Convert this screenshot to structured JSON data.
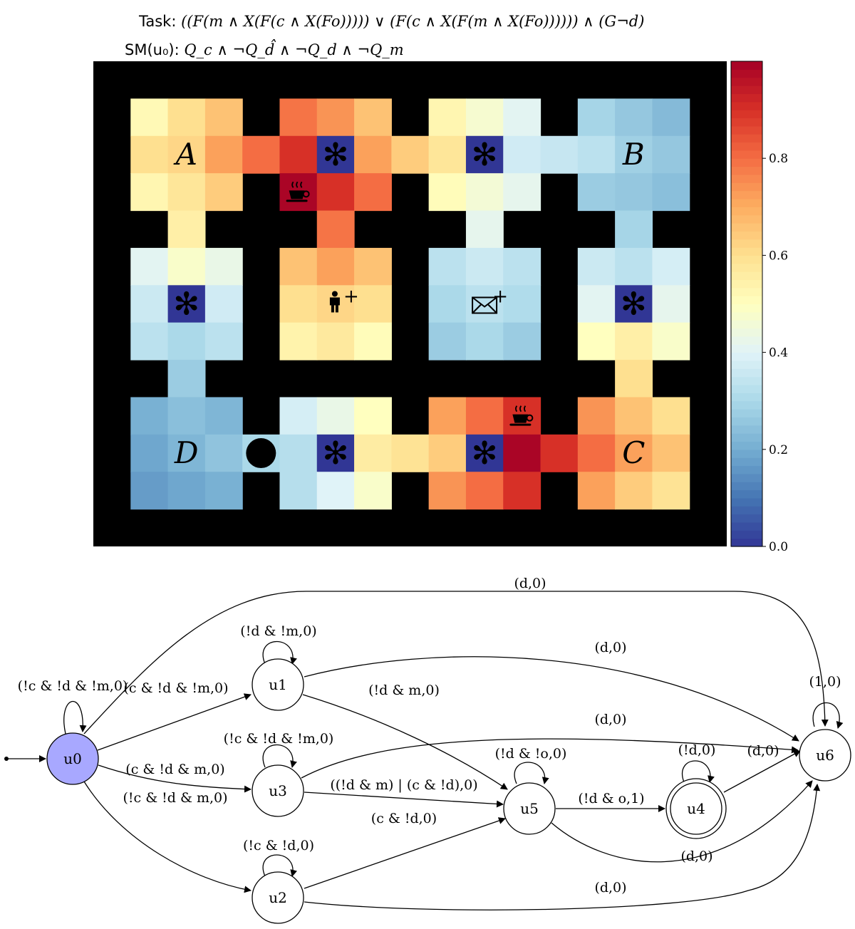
{
  "header": {
    "task_label": "Task:",
    "task_formula": "((F(m ∧ X(F(c ∧ X(Fo))))) ∨ (F(c ∧ X(F(m ∧ X(Fo)))))) ∧ (G¬d)",
    "sm_label": "SM(u₀):",
    "sm_formula": "Q_c ∧ ¬Q_d̂ ∧ ¬Q_d ∧ ¬Q_m"
  },
  "gridworld": {
    "rows": 13,
    "cols": 17,
    "wall_color": "#000000",
    "values": [
      [
        null,
        null,
        null,
        null,
        null,
        null,
        null,
        null,
        null,
        null,
        null,
        null,
        null,
        null,
        null,
        null,
        null
      ],
      [
        null,
        0.52,
        0.6,
        0.66,
        null,
        0.79,
        0.74,
        0.66,
        null,
        0.53,
        0.47,
        0.41,
        null,
        0.29,
        0.26,
        0.23,
        null
      ],
      [
        null,
        0.6,
        0.62,
        0.72,
        0.8,
        0.9,
        0.0,
        0.72,
        0.64,
        0.58,
        0.0,
        0.37,
        0.35,
        0.33,
        0.28,
        0.26,
        null
      ],
      [
        null,
        0.53,
        0.58,
        0.64,
        null,
        0.99,
        0.9,
        0.8,
        null,
        0.51,
        0.46,
        0.42,
        null,
        0.27,
        0.26,
        0.24,
        null
      ],
      [
        null,
        null,
        0.55,
        null,
        null,
        null,
        0.79,
        null,
        null,
        null,
        0.42,
        null,
        null,
        null,
        0.29,
        null,
        null
      ],
      [
        null,
        0.41,
        0.48,
        0.43,
        null,
        0.66,
        0.72,
        0.66,
        null,
        0.33,
        0.36,
        0.33,
        null,
        0.36,
        0.33,
        0.38,
        null
      ],
      [
        null,
        0.36,
        0.0,
        0.37,
        null,
        0.6,
        0.62,
        0.6,
        null,
        0.3,
        0.33,
        0.31,
        null,
        0.41,
        0.0,
        0.42,
        null
      ],
      [
        null,
        0.33,
        0.3,
        0.33,
        null,
        0.54,
        0.57,
        0.51,
        null,
        0.27,
        0.3,
        0.27,
        null,
        0.5,
        0.55,
        0.48,
        null
      ],
      [
        null,
        null,
        0.27,
        null,
        null,
        null,
        null,
        null,
        null,
        null,
        null,
        null,
        null,
        null,
        0.6,
        null,
        null
      ],
      [
        null,
        0.21,
        0.24,
        0.22,
        null,
        0.38,
        0.43,
        0.5,
        null,
        0.72,
        0.8,
        0.9,
        null,
        0.74,
        0.66,
        0.6,
        null
      ],
      [
        null,
        0.19,
        0.22,
        0.25,
        0.3,
        0.32,
        0.0,
        0.56,
        0.59,
        0.64,
        0.0,
        0.99,
        0.9,
        0.8,
        0.72,
        0.66,
        null
      ],
      [
        null,
        0.17,
        0.19,
        0.21,
        null,
        0.32,
        0.4,
        0.48,
        null,
        0.74,
        0.8,
        0.9,
        null,
        0.72,
        0.64,
        0.59,
        null
      ],
      [
        null,
        null,
        null,
        null,
        null,
        null,
        null,
        null,
        null,
        null,
        null,
        null,
        null,
        null,
        null,
        null,
        null
      ]
    ],
    "room_labels": [
      {
        "text": "A",
        "row": 2,
        "col": 2
      },
      {
        "text": "B",
        "row": 2,
        "col": 14
      },
      {
        "text": "C",
        "row": 10,
        "col": 14
      },
      {
        "text": "D",
        "row": 10,
        "col": 2
      }
    ],
    "markers": [
      {
        "icon": "decoration-star-icon",
        "glyph": "✻",
        "row": 2,
        "col": 6
      },
      {
        "icon": "decoration-star-icon",
        "glyph": "✻",
        "row": 2,
        "col": 10
      },
      {
        "icon": "decoration-star-icon",
        "glyph": "✻",
        "row": 6,
        "col": 2
      },
      {
        "icon": "decoration-star-icon",
        "glyph": "✻",
        "row": 6,
        "col": 14
      },
      {
        "icon": "decoration-star-icon",
        "glyph": "✻",
        "row": 10,
        "col": 6
      },
      {
        "icon": "decoration-star-icon",
        "glyph": "✻",
        "row": 10,
        "col": 10
      },
      {
        "icon": "coffee-cup-icon",
        "glyph": "☕",
        "row": 3,
        "col": 5
      },
      {
        "icon": "coffee-cup-icon",
        "glyph": "☕",
        "row": 9,
        "col": 11
      },
      {
        "icon": "person-icon",
        "glyph": "",
        "row": 6,
        "col": 6
      },
      {
        "icon": "mail-envelope-icon",
        "glyph": "✉",
        "row": 6,
        "col": 10
      },
      {
        "icon": "agent-dot-icon",
        "glyph": "",
        "row": 10,
        "col": 4
      }
    ],
    "plus_marks": [
      {
        "text": "+",
        "row": 6,
        "col": 6
      },
      {
        "text": "+",
        "row": 6,
        "col": 10
      }
    ]
  },
  "colorbar": {
    "min": 0.0,
    "max": 1.0,
    "colormap": "RdYlBu_r",
    "ticks": [
      {
        "value": 0.0,
        "label": "0.0"
      },
      {
        "value": 0.2,
        "label": "0.2"
      },
      {
        "value": 0.4,
        "label": "0.4"
      },
      {
        "value": 0.6,
        "label": "0.6"
      },
      {
        "value": 0.8,
        "label": "0.8"
      }
    ]
  },
  "automaton": {
    "initial_state": "u0",
    "accepting_states": [
      "u4"
    ],
    "current_state": "u0",
    "current_state_fill": "#a8a8ff",
    "nodes": [
      {
        "id": "u0",
        "label": "u0"
      },
      {
        "id": "u1",
        "label": "u1"
      },
      {
        "id": "u2",
        "label": "u2"
      },
      {
        "id": "u3",
        "label": "u3"
      },
      {
        "id": "u4",
        "label": "u4"
      },
      {
        "id": "u5",
        "label": "u5"
      },
      {
        "id": "u6",
        "label": "u6"
      }
    ],
    "edges": [
      {
        "from": "u0",
        "to": "u0",
        "label": "(!c & !d & !m,0)"
      },
      {
        "from": "u0",
        "to": "u1",
        "label": "(c & !d & !m,0)"
      },
      {
        "from": "u0",
        "to": "u3",
        "label": "(c & !d & m,0)"
      },
      {
        "from": "u0",
        "to": "u2",
        "label": "(!c & !d & m,0)"
      },
      {
        "from": "u0",
        "to": "u6",
        "label": "(d,0)"
      },
      {
        "from": "u1",
        "to": "u1",
        "label": "(!d & !m,0)"
      },
      {
        "from": "u1",
        "to": "u6",
        "label": "(d,0)"
      },
      {
        "from": "u1",
        "to": "u5",
        "label": "(!d & m,0)"
      },
      {
        "from": "u3",
        "to": "u3",
        "label": "(!c & !d & !m,0)"
      },
      {
        "from": "u3",
        "to": "u6",
        "label": "(d,0)"
      },
      {
        "from": "u3",
        "to": "u5",
        "label": "((!d & m) | (c & !d),0)"
      },
      {
        "from": "u2",
        "to": "u2",
        "label": "(!c & !d,0)"
      },
      {
        "from": "u2",
        "to": "u5",
        "label": "(c & !d,0)"
      },
      {
        "from": "u2",
        "to": "u6",
        "label": "(d,0)"
      },
      {
        "from": "u5",
        "to": "u5",
        "label": "(!d & !o,0)"
      },
      {
        "from": "u5",
        "to": "u4",
        "label": "(!d & o,1)"
      },
      {
        "from": "u5",
        "to": "u6",
        "label": "(d,0)"
      },
      {
        "from": "u4",
        "to": "u4",
        "label": "(!d,0)"
      },
      {
        "from": "u4",
        "to": "u6",
        "label": "(d,0)"
      },
      {
        "from": "u6",
        "to": "u6",
        "label": "(1,0)"
      }
    ]
  }
}
